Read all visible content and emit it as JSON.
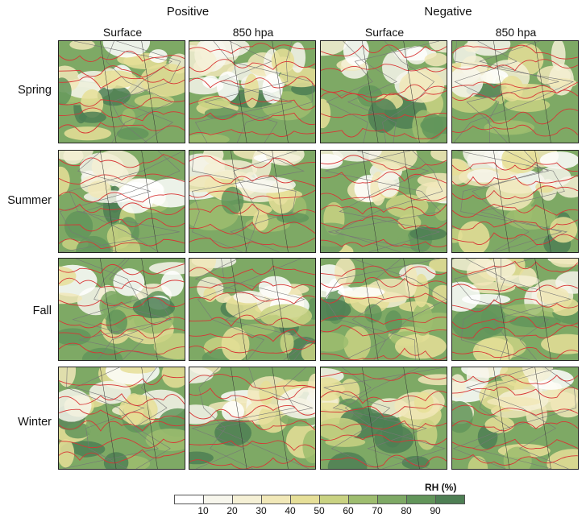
{
  "column_groups": [
    "Positive",
    "Negative"
  ],
  "columns": [
    "Surface",
    "850 hpa",
    "Surface",
    "850 hpa"
  ],
  "rows": [
    "Spring",
    "Summer",
    "Fall",
    "Winter"
  ],
  "colorbar": {
    "title": "RH  (%)",
    "ticks": [
      "10",
      "20",
      "30",
      "40",
      "50",
      "60",
      "70",
      "80",
      "90"
    ],
    "colors": [
      "#ffffff",
      "#f7f6ec",
      "#f5f0d5",
      "#f1e8b8",
      "#e6df98",
      "#c9d282",
      "#9ebd6f",
      "#7ea965",
      "#62955a",
      "#4e7f54"
    ]
  },
  "colors": {
    "contour": "#d83535",
    "land_outline": "#777777"
  }
}
